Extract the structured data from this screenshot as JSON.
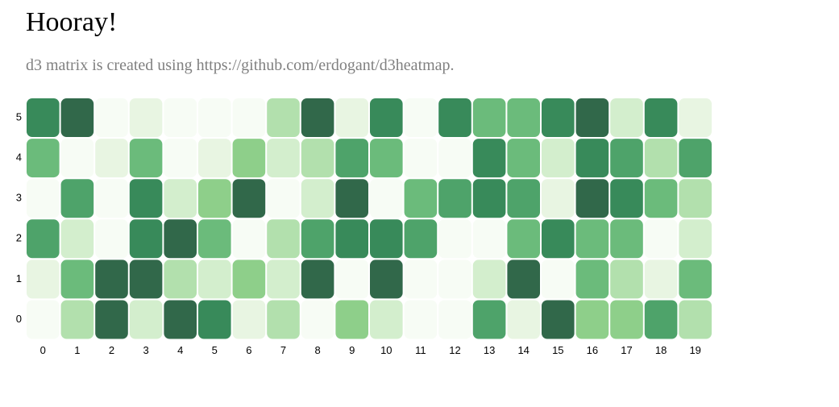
{
  "header": {
    "title": "Hooray!",
    "subtitle": "d3 matrix is created using https://github.com/erdogant/d3heatmap."
  },
  "colors": {
    "scale": [
      "#f7fcf5",
      "#e8f5e2",
      "#d3eecd",
      "#b2e0ad",
      "#8ecf8a",
      "#6bbb7b",
      "#4ea36a",
      "#388a5a",
      "#31684a"
    ]
  },
  "chart_data": {
    "type": "heatmap",
    "title": "",
    "xlabel": "",
    "ylabel": "",
    "x_categories": [
      "0",
      "1",
      "2",
      "3",
      "4",
      "5",
      "6",
      "7",
      "8",
      "9",
      "10",
      "11",
      "12",
      "13",
      "14",
      "15",
      "16",
      "17",
      "18",
      "19"
    ],
    "y_categories": [
      "5",
      "4",
      "3",
      "2",
      "1",
      "0"
    ],
    "value_range": [
      0,
      8
    ],
    "values": [
      [
        7,
        8,
        0,
        1,
        0,
        0,
        0,
        3,
        8,
        1,
        7,
        0,
        7,
        5,
        5,
        7,
        8,
        2,
        7,
        1
      ],
      [
        5,
        0,
        1,
        5,
        0,
        1,
        4,
        2,
        3,
        6,
        5,
        0,
        0,
        7,
        5,
        2,
        7,
        6,
        3,
        6
      ],
      [
        0,
        6,
        0,
        7,
        2,
        4,
        8,
        0,
        2,
        8,
        0,
        5,
        6,
        7,
        6,
        1,
        8,
        7,
        5,
        3
      ],
      [
        6,
        2,
        0,
        7,
        8,
        5,
        0,
        3,
        6,
        7,
        7,
        6,
        0,
        0,
        5,
        7,
        5,
        5,
        0,
        2
      ],
      [
        1,
        5,
        8,
        8,
        3,
        2,
        4,
        2,
        8,
        0,
        8,
        0,
        0,
        2,
        8,
        0,
        5,
        3,
        1,
        5
      ],
      [
        0,
        3,
        8,
        2,
        8,
        7,
        1,
        3,
        0,
        4,
        2,
        0,
        0,
        6,
        1,
        8,
        4,
        4,
        6,
        3
      ]
    ]
  }
}
